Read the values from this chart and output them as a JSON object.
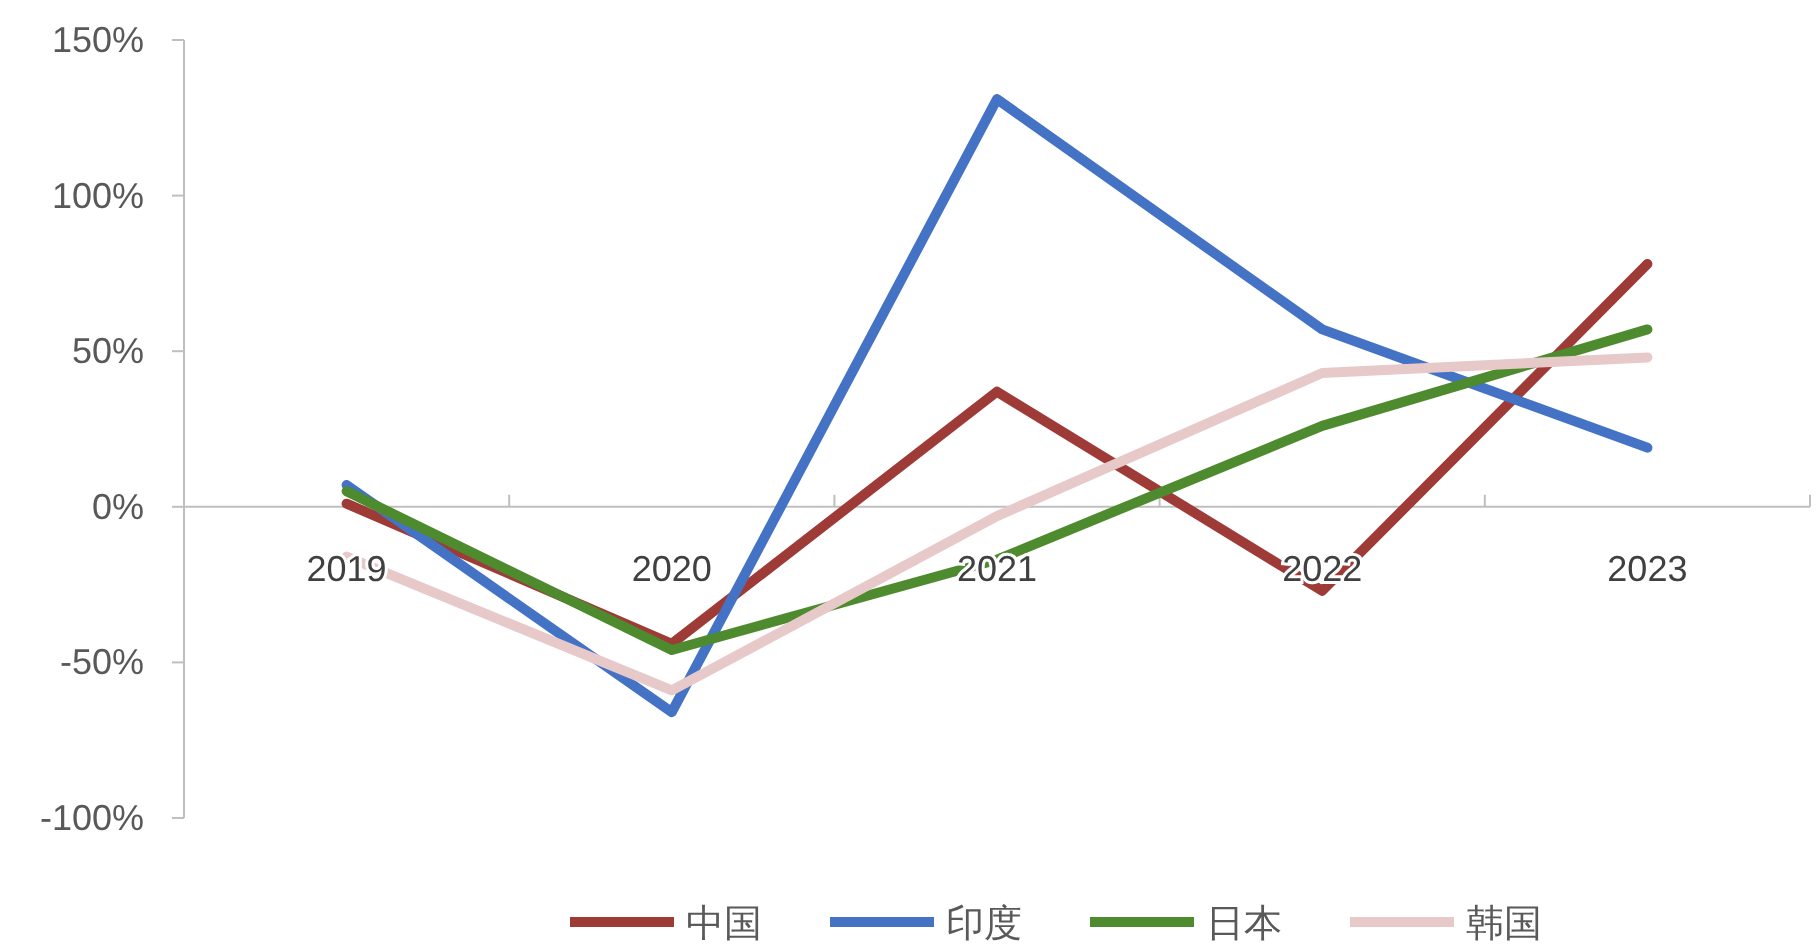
{
  "chart_data": {
    "type": "line",
    "categories": [
      "2019",
      "2020",
      "2021",
      "2022",
      "2023"
    ],
    "series": [
      {
        "name": "中国",
        "color": "#9e3b37",
        "values": [
          1,
          -44,
          37,
          -27,
          78
        ]
      },
      {
        "name": "印度",
        "color": "#4472c4",
        "values": [
          7,
          -66,
          131,
          57,
          19
        ]
      },
      {
        "name": "日本",
        "color": "#4e8a2e",
        "values": [
          5,
          -46,
          -17,
          26,
          57
        ]
      },
      {
        "name": "韩国",
        "color": "#e6c9c8",
        "values": [
          -16,
          -59,
          -3,
          43,
          48
        ]
      }
    ],
    "ylim": [
      -100,
      150
    ],
    "yticks": [
      {
        "value": -100,
        "label": "-100%"
      },
      {
        "value": -50,
        "label": "-50%"
      },
      {
        "value": 0,
        "label": "0%"
      },
      {
        "value": 50,
        "label": "50%"
      },
      {
        "value": 100,
        "label": "100%"
      },
      {
        "value": 150,
        "label": "150%"
      }
    ],
    "legend": "bottom",
    "grid": false,
    "marker": "none",
    "line_style": "solid"
  }
}
